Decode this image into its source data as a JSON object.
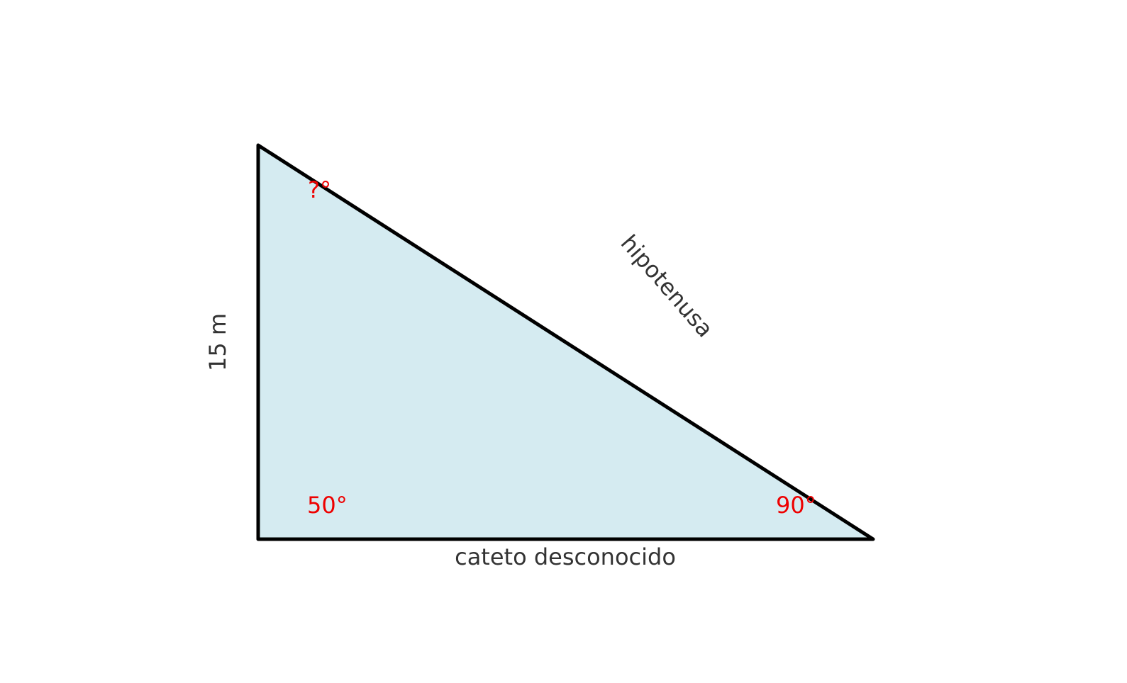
{
  "diagram": {
    "colors": {
      "fill": "#d5ebf1",
      "stroke": "#000000",
      "side_label": "#333333",
      "angle_label": "#ee0000"
    },
    "side_labels": {
      "left": "15 m",
      "bottom": "cateto desconocido",
      "hypotenuse": "hipotenusa"
    },
    "angle_labels": {
      "top": "?°",
      "bottom_left": "50°",
      "bottom_right": "90°"
    }
  }
}
